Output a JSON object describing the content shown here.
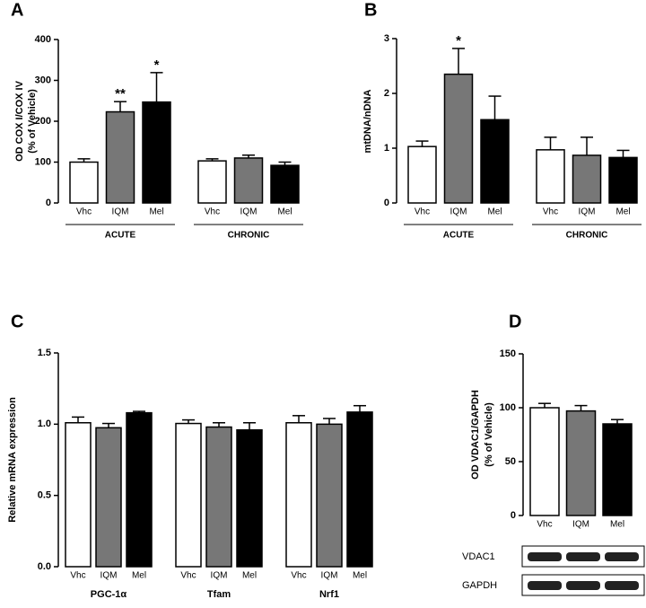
{
  "chart_data": [
    {
      "type": "bar",
      "panel": "A",
      "ylabel": [
        "OD COX I/COX IV",
        "(% of Vehicle)"
      ],
      "categories": [
        "ACUTE",
        "CHRONIC"
      ],
      "group_line": true,
      "series": [
        {
          "name": "Vhc",
          "color": "#ffffff",
          "values": [
            100,
            103
          ],
          "errors": [
            8,
            5
          ]
        },
        {
          "name": "IQM",
          "color": "#777777",
          "values": [
            223,
            110
          ],
          "errors": [
            25,
            7
          ]
        },
        {
          "name": "Mel",
          "color": "#000000",
          "values": [
            247,
            92
          ],
          "errors": [
            72,
            8
          ]
        }
      ],
      "annotations": [
        {
          "text": "**",
          "series": 1,
          "category": 0
        },
        {
          "text": "*",
          "series": 2,
          "category": 0
        }
      ],
      "ylim": [
        0,
        400
      ],
      "yticks": [
        0,
        100,
        200,
        300,
        400
      ]
    },
    {
      "type": "bar",
      "panel": "B",
      "ylabel": [
        "mtDNA/nDNA"
      ],
      "categories": [
        "ACUTE",
        "CHRONIC"
      ],
      "group_line": true,
      "series": [
        {
          "name": "Vhc",
          "color": "#ffffff",
          "values": [
            1.03,
            0.97
          ],
          "errors": [
            0.1,
            0.23
          ]
        },
        {
          "name": "IQM",
          "color": "#777777",
          "values": [
            2.35,
            0.87
          ],
          "errors": [
            0.47,
            0.33
          ]
        },
        {
          "name": "Mel",
          "color": "#000000",
          "values": [
            1.52,
            0.83
          ],
          "errors": [
            0.43,
            0.13
          ]
        }
      ],
      "annotations": [
        {
          "text": "*",
          "series": 1,
          "category": 0
        }
      ],
      "ylim": [
        0,
        3
      ],
      "yticks": [
        0,
        1,
        2,
        3
      ]
    },
    {
      "type": "bar",
      "panel": "C",
      "ylabel": [
        "Relative mRNA expression"
      ],
      "categories": [
        "PGC-1α",
        "Tfam",
        "Nrf1"
      ],
      "group_line": false,
      "series": [
        {
          "name": "Vhc",
          "color": "#ffffff",
          "values": [
            1.01,
            1.005,
            1.01
          ],
          "errors": [
            0.04,
            0.025,
            0.05
          ]
        },
        {
          "name": "IQM",
          "color": "#777777",
          "values": [
            0.975,
            0.98,
            1.0
          ],
          "errors": [
            0.03,
            0.03,
            0.04
          ]
        },
        {
          "name": "Mel",
          "color": "#000000",
          "values": [
            1.08,
            0.96,
            1.085
          ],
          "errors": [
            0.01,
            0.05,
            0.045
          ]
        }
      ],
      "ylim": [
        0,
        1.5
      ],
      "yticks": [
        {
          "value": 0,
          "label": "0.0"
        },
        0.5,
        {
          "value": 1,
          "label": "1.0"
        },
        1.5
      ]
    },
    {
      "type": "bar",
      "panel": "D",
      "ylabel": [
        "OD VDAC1/GAPDH",
        "(% of Vehicle)"
      ],
      "categories": [
        null
      ],
      "group_line": false,
      "series": [
        {
          "name": "Vhc",
          "color": "#ffffff",
          "values": [
            100
          ],
          "errors": [
            4
          ]
        },
        {
          "name": "IQM",
          "color": "#777777",
          "values": [
            97
          ],
          "errors": [
            5
          ]
        },
        {
          "name": "Mel",
          "color": "#000000",
          "values": [
            85
          ],
          "errors": [
            4
          ]
        }
      ],
      "blot_labels": [
        "VDAC1",
        "GAPDH"
      ],
      "ylim": [
        0,
        150
      ],
      "yticks": [
        0,
        50,
        100,
        150
      ]
    }
  ]
}
